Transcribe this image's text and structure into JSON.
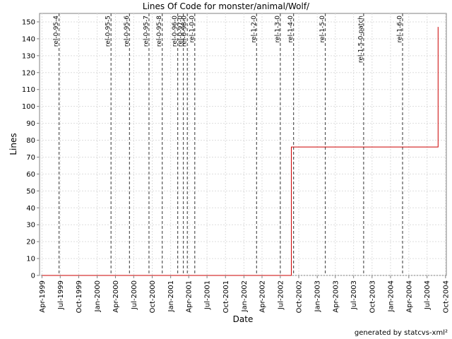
{
  "chart_data": {
    "type": "line",
    "title": "Lines Of Code for monster/animal/Wolf/",
    "xlabel": "Date",
    "ylabel": "Lines",
    "ylim": [
      0,
      155
    ],
    "yticks": [
      0,
      10,
      20,
      30,
      40,
      50,
      60,
      70,
      80,
      90,
      100,
      110,
      120,
      130,
      140,
      150
    ],
    "xlim": [
      "1999-03-20",
      "2004-10-05"
    ],
    "xticks": [
      "1999-04-01",
      "1999-07-01",
      "1999-10-01",
      "2000-01-01",
      "2000-04-01",
      "2000-07-01",
      "2000-10-01",
      "2001-01-01",
      "2001-04-01",
      "2001-07-01",
      "2001-10-01",
      "2002-01-01",
      "2002-04-01",
      "2002-07-01",
      "2002-10-01",
      "2003-01-01",
      "2003-04-01",
      "2003-07-01",
      "2003-10-01",
      "2004-01-01",
      "2004-04-01",
      "2004-07-01",
      "2004-10-01"
    ],
    "xtick_labels": [
      "Apr-1999",
      "Jul-1999",
      "Oct-1999",
      "Jan-2000",
      "Apr-2000",
      "Jul-2000",
      "Oct-2000",
      "Jan-2001",
      "Apr-2001",
      "Jul-2001",
      "Oct-2001",
      "Jan-2002",
      "Apr-2002",
      "Jul-2002",
      "Oct-2002",
      "Jan-2003",
      "Apr-2003",
      "Jul-2003",
      "Oct-2003",
      "Jan-2004",
      "Apr-2004",
      "Jul-2004",
      "Oct-2004"
    ],
    "grid": true,
    "series": [
      {
        "color": "#cc0000",
        "points": [
          {
            "x": "1999-04-01",
            "y": 0
          },
          {
            "x": "2002-08-25",
            "y": 0
          },
          {
            "x": "2002-08-25",
            "y": 76
          },
          {
            "x": "2004-08-25",
            "y": 76
          },
          {
            "x": "2004-08-25",
            "y": 147
          }
        ]
      }
    ],
    "markers": [
      {
        "date": "1999-06-25",
        "label": "rel-0-95-4"
      },
      {
        "date": "2000-03-10",
        "label": "rel-0-95-5"
      },
      {
        "date": "2000-06-10",
        "label": "rel-0-95-6"
      },
      {
        "date": "2000-09-15",
        "label": "rel-0-95-7"
      },
      {
        "date": "2000-11-20",
        "label": "rel-0-95-8"
      },
      {
        "date": "2001-02-05",
        "label": "rel-0-96-0"
      },
      {
        "date": "2001-03-05",
        "label": "rel-0-97-0"
      },
      {
        "date": "2001-03-25",
        "label": "rel-0-98-0"
      },
      {
        "date": "2001-05-01",
        "label": "rel-1-0-0"
      },
      {
        "date": "2002-03-05",
        "label": "rel-1-2-0"
      },
      {
        "date": "2002-07-01",
        "label": "rel-1-3-0"
      },
      {
        "date": "2002-09-05",
        "label": "rel-1-4-0"
      },
      {
        "date": "2003-02-10",
        "label": "rel-1-5-0"
      },
      {
        "date": "2003-08-20",
        "label": "rel-1-5-0-patch"
      },
      {
        "date": "2004-03-01",
        "label": "rel-1-6-0"
      }
    ]
  },
  "footer": "generated by statcvs-xml²"
}
